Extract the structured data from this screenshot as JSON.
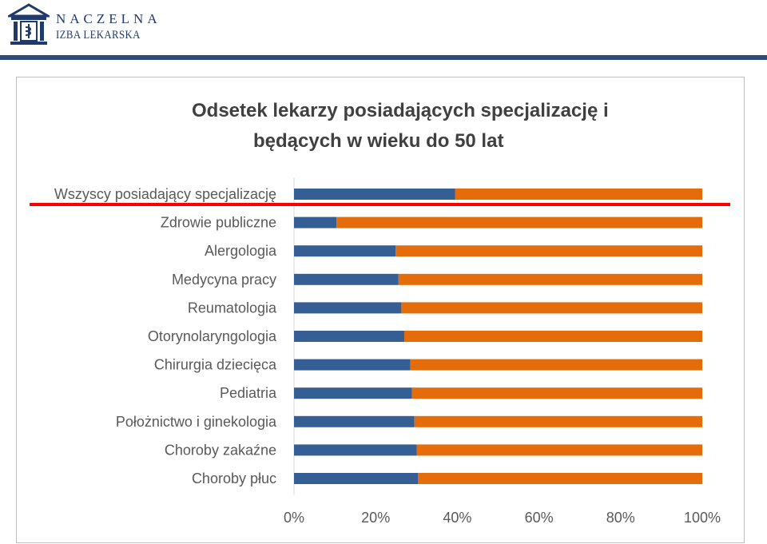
{
  "header": {
    "logo_line1": "NACZELNA",
    "logo_line2": "IZBA LEKARSKA",
    "brand_color": "#1f3a6b",
    "rule_color": "#2f4a7c"
  },
  "chart_data": {
    "type": "bar",
    "orientation": "horizontal",
    "stacked": "percent",
    "title_line1": "Odsetek lekarzy posiadających specjalizację i",
    "title_line2": "będących w wieku do 50 lat",
    "categories": [
      "Wszyscy posiadający specjalizację",
      "Zdrowie publiczne",
      "Alergologia",
      "Medycyna pracy",
      "Reumatologia",
      "Otorynolaryngologia",
      "Chirurgia dziecięca",
      "Pediatria",
      "Położnictwo i ginekologia",
      "Choroby zakaźne",
      "Choroby płuc"
    ],
    "series": [
      {
        "color": "#355f94",
        "values": [
          0.395,
          0.104,
          0.249,
          0.256,
          0.263,
          0.27,
          0.285,
          0.289,
          0.295,
          0.301,
          0.304
        ]
      },
      {
        "color": "#e46c0a",
        "values": [
          0.605,
          0.896,
          0.751,
          0.744,
          0.737,
          0.73,
          0.715,
          0.711,
          0.705,
          0.699,
          0.696
        ]
      }
    ],
    "x_ticks": [
      "0%",
      "20%",
      "40%",
      "60%",
      "80%",
      "100%"
    ],
    "xlim": [
      0,
      1
    ],
    "grid": false,
    "legend": "none",
    "annotation": {
      "type": "red-underline",
      "category": "Wszyscy posiadający specjalizację",
      "color": "#ff0000"
    }
  }
}
